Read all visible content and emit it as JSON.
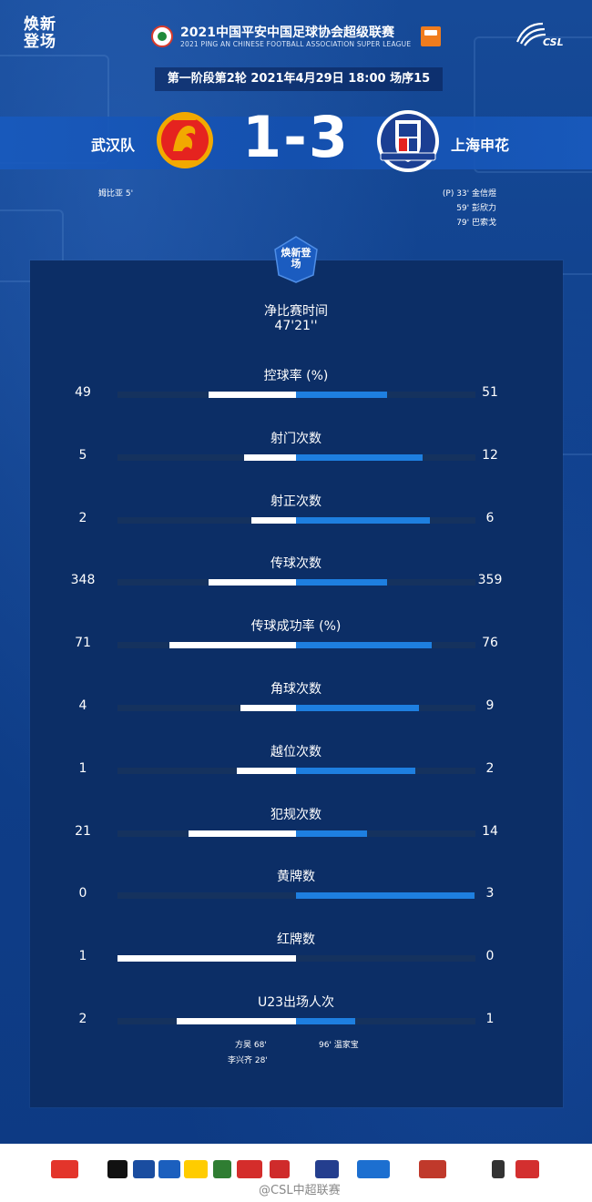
{
  "header": {
    "brand": "焕新登场",
    "league_title": "2021中国平安中国足球协会超级联赛",
    "league_subtitle": "2021 PING AN CHINESE FOOTBALL ASSOCIATION SUPER LEAGUE",
    "csl_logo_text": "CSL"
  },
  "round_info": "第一阶段第2轮  2021年4月29日 18:00 场序15",
  "match": {
    "home_team": "武汉队",
    "away_team": "上海申花",
    "score": "1-3",
    "home_color": "#e5231f",
    "away_color": "#1b3f93"
  },
  "scorers": {
    "home": [
      {
        "text": "姆比亚  5'"
      }
    ],
    "away": [
      {
        "text": "(P)  33'   金信煜"
      },
      {
        "text": "59'   彭欣力"
      },
      {
        "text": "79'   巴索戈"
      }
    ]
  },
  "panel_badge": "焕新登场",
  "net_time": {
    "label": "净比赛时间",
    "value": "47'21''"
  },
  "stats": [
    {
      "label": "控球率 (%)",
      "home": "49",
      "away": "51",
      "home_frac": 0.49,
      "away_frac": 0.51
    },
    {
      "label": "射门次数",
      "home": "5",
      "away": "12",
      "home_frac": 0.29,
      "away_frac": 0.71
    },
    {
      "label": "射正次数",
      "home": "2",
      "away": "6",
      "home_frac": 0.25,
      "away_frac": 0.75
    },
    {
      "label": "传球次数",
      "home": "348",
      "away": "359",
      "home_frac": 0.49,
      "away_frac": 0.51
    },
    {
      "label": "传球成功率 (%)",
      "home": "71",
      "away": "76",
      "home_frac": 0.71,
      "away_frac": 0.76
    },
    {
      "label": "角球次数",
      "home": "4",
      "away": "9",
      "home_frac": 0.31,
      "away_frac": 0.69
    },
    {
      "label": "越位次数",
      "home": "1",
      "away": "2",
      "home_frac": 0.33,
      "away_frac": 0.67
    },
    {
      "label": "犯规次数",
      "home": "21",
      "away": "14",
      "home_frac": 0.6,
      "away_frac": 0.4
    },
    {
      "label": "黄牌数",
      "home": "0",
      "away": "3",
      "home_frac": 0.0,
      "away_frac": 1.0
    },
    {
      "label": "红牌数",
      "home": "1",
      "away": "0",
      "home_frac": 1.0,
      "away_frac": 0.0
    },
    {
      "label": "U23出场人次",
      "home": "2",
      "away": "1",
      "home_frac": 0.67,
      "away_frac": 0.33
    }
  ],
  "u23_subs": {
    "home": [
      "方昊   68'",
      "李兴齐   28'"
    ],
    "away": [
      "96'   温家宝"
    ]
  },
  "footer": {
    "watermark": "@CSL中超联赛",
    "sponsors": [
      {
        "name": "中国平安",
        "color": "#e3352b"
      },
      {
        "name": "nike",
        "color": "#111111"
      },
      {
        "name": "上汽集团",
        "color": "#1a4da0"
      },
      {
        "name": "蓝月亮",
        "color": "#1b5fbe"
      },
      {
        "name": "DHL",
        "color": "#ffcc00"
      },
      {
        "name": "东鹏",
        "color": "#2f7d32"
      },
      {
        "name": "金龙鱼",
        "color": "#d42d2b"
      },
      {
        "name": "Aspen",
        "color": "#cf2b2b"
      },
      {
        "name": "恒源祥",
        "color": "#243e8e"
      },
      {
        "name": "美的",
        "color": "#1c6fd0"
      },
      {
        "name": "SPORTS",
        "color": "#c0392b"
      },
      {
        "name": "EA",
        "color": "#333333"
      },
      {
        "name": "KONAMI",
        "color": "#d32f2f"
      }
    ]
  }
}
